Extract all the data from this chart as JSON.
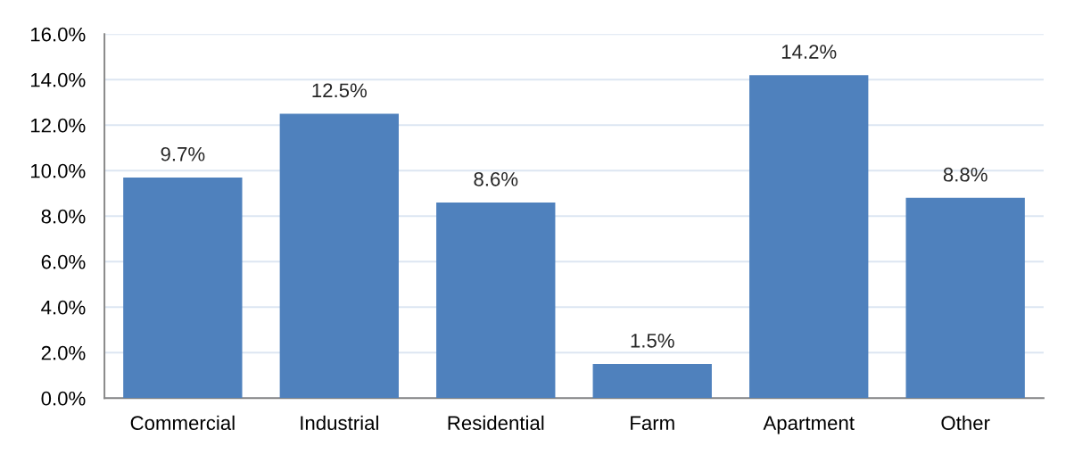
{
  "chart_data": {
    "type": "bar",
    "categories": [
      "Commercial",
      "Industrial",
      "Residential",
      "Farm",
      "Apartment",
      "Other"
    ],
    "values": [
      9.7,
      12.5,
      8.6,
      1.5,
      14.2,
      8.8
    ],
    "value_labels": [
      "9.7%",
      "12.5%",
      "8.6%",
      "1.5%",
      "14.2%",
      "8.8%"
    ],
    "color": "#4f81bd",
    "ylim": [
      0,
      16
    ],
    "yticks": [
      {
        "value": 0,
        "label": "0.0%"
      },
      {
        "value": 2,
        "label": "2.0%"
      },
      {
        "value": 4,
        "label": "4.0%"
      },
      {
        "value": 6,
        "label": "6.0%"
      },
      {
        "value": 8,
        "label": "8.0%"
      },
      {
        "value": 10,
        "label": "10.0%"
      },
      {
        "value": 12,
        "label": "12.0%"
      },
      {
        "value": 14,
        "label": "14.0%"
      },
      {
        "value": 16,
        "label": "16.0%"
      }
    ],
    "grid": "y"
  }
}
